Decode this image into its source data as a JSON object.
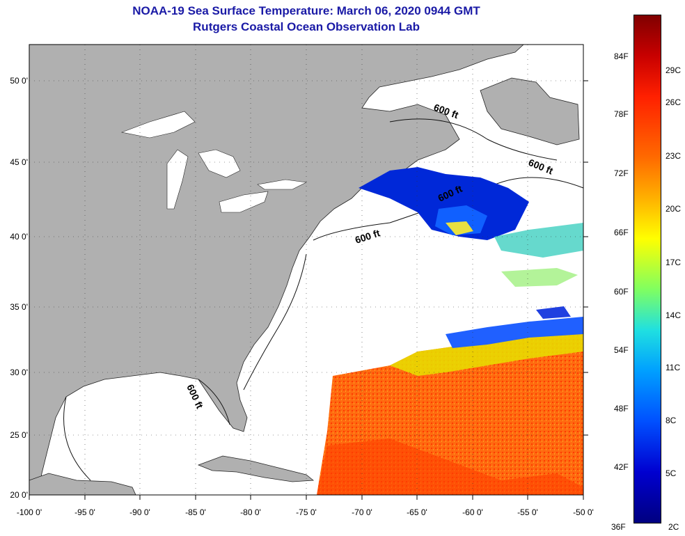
{
  "title": {
    "line1": "NOAA-19 Sea Surface Temperature:  March 06, 2020 0944 GMT",
    "line2": "Rutgers Coastal Ocean Observation Lab"
  },
  "axes": {
    "lat_labels": [
      "50 0'",
      "45 0'",
      "40 0'",
      "35 0'",
      "30 0'",
      "25 0'",
      "20 0'"
    ],
    "lon_labels": [
      "-100 0'",
      "-95 0'",
      "-90 0'",
      "-85 0'",
      "-80 0'",
      "-75 0'",
      "-70 0'",
      "-65 0'",
      "-60 0'",
      "-55 0'",
      "-50 0'"
    ]
  },
  "map_labels": {
    "depth_contour_1": "600 ft",
    "depth_contour_2": "600 ft",
    "depth_contour_3": "600 ft",
    "depth_contour_4": "600 ft",
    "depth_contour_5": "600 ft"
  },
  "colorbar": {
    "fahrenheit": [
      "84F",
      "78F",
      "72F",
      "66F",
      "60F",
      "54F",
      "48F",
      "42F",
      "36F"
    ],
    "celsius": [
      "29C",
      "26C",
      "23C",
      "20C",
      "17C",
      "14C",
      "11C",
      "8C",
      "5C",
      "2C"
    ]
  },
  "colors": {
    "land": "#b0b0b0",
    "water": "#ffffff",
    "title": "#1a1aa6",
    "warm": "#ff6a10",
    "cold": "#0030e0"
  }
}
